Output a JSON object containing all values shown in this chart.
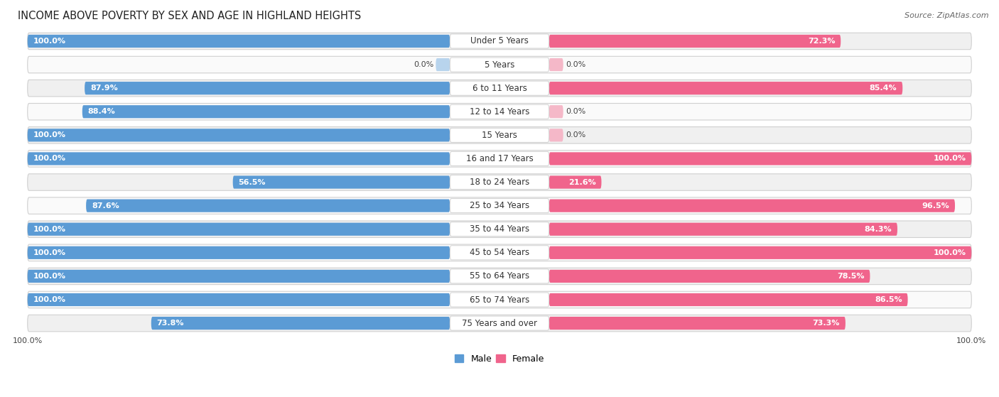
{
  "title": "INCOME ABOVE POVERTY BY SEX AND AGE IN HIGHLAND HEIGHTS",
  "source": "Source: ZipAtlas.com",
  "categories": [
    "Under 5 Years",
    "5 Years",
    "6 to 11 Years",
    "12 to 14 Years",
    "15 Years",
    "16 and 17 Years",
    "18 to 24 Years",
    "25 to 34 Years",
    "35 to 44 Years",
    "45 to 54 Years",
    "55 to 64 Years",
    "65 to 74 Years",
    "75 Years and over"
  ],
  "male_values": [
    100.0,
    0.0,
    87.9,
    88.4,
    100.0,
    100.0,
    56.5,
    87.6,
    100.0,
    100.0,
    100.0,
    100.0,
    73.8
  ],
  "female_values": [
    72.3,
    0.0,
    85.4,
    0.0,
    0.0,
    100.0,
    21.6,
    96.5,
    84.3,
    100.0,
    78.5,
    86.5,
    73.3
  ],
  "male_color": "#5b9bd5",
  "female_color": "#f0648c",
  "male_light_color": "#b8d4ed",
  "female_light_color": "#f5b8c8",
  "row_bg_odd": "#f0f0f0",
  "row_bg_even": "#fafafa",
  "background_color": "#ffffff",
  "title_fontsize": 10.5,
  "label_fontsize": 8.5,
  "bar_value_fontsize": 8.0,
  "source_fontsize": 8,
  "legend_male": "Male",
  "legend_female": "Female",
  "bottom_labels": [
    "100.0%",
    "100.0%"
  ]
}
